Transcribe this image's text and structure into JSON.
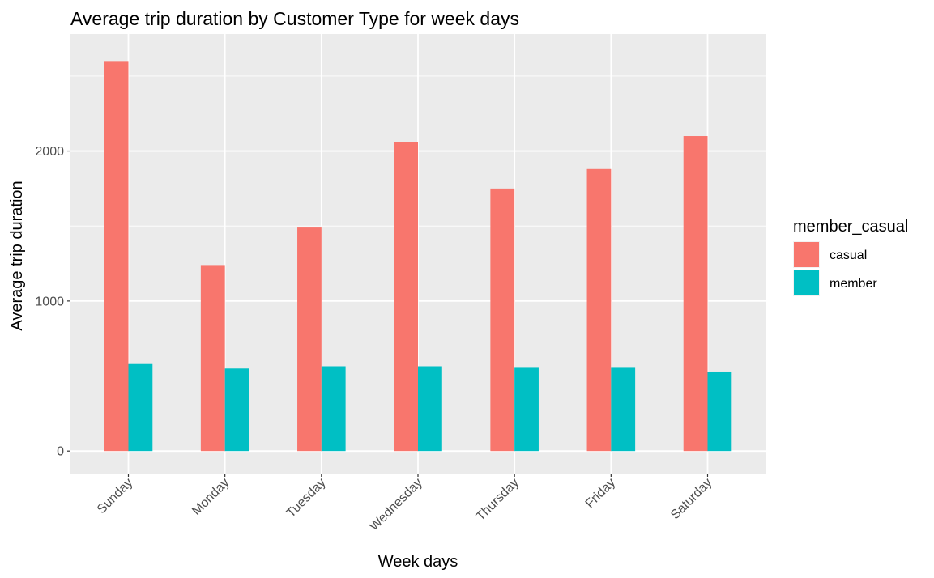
{
  "chart_data": {
    "type": "bar",
    "title": "Average trip duration by Customer Type for week days",
    "xlabel": "Week days",
    "ylabel": "Average trip duration",
    "categories": [
      "Sunday",
      "Monday",
      "Tuesday",
      "Wednesday",
      "Thursday",
      "Friday",
      "Saturday"
    ],
    "series": [
      {
        "name": "casual",
        "color": "#F8766D",
        "values": [
          2600,
          1240,
          1490,
          2060,
          1750,
          1880,
          2100
        ]
      },
      {
        "name": "member",
        "color": "#00BFC4",
        "values": [
          580,
          550,
          565,
          565,
          560,
          560,
          530
        ]
      }
    ],
    "ylim": [
      -150,
      2780
    ],
    "yticks": [
      0,
      1000,
      2000
    ],
    "ytick_labels": [
      "0",
      "1000",
      "2000"
    ],
    "grid": true,
    "legend": {
      "title": "member_casual",
      "position": "right",
      "entries": [
        "casual",
        "member"
      ]
    }
  }
}
